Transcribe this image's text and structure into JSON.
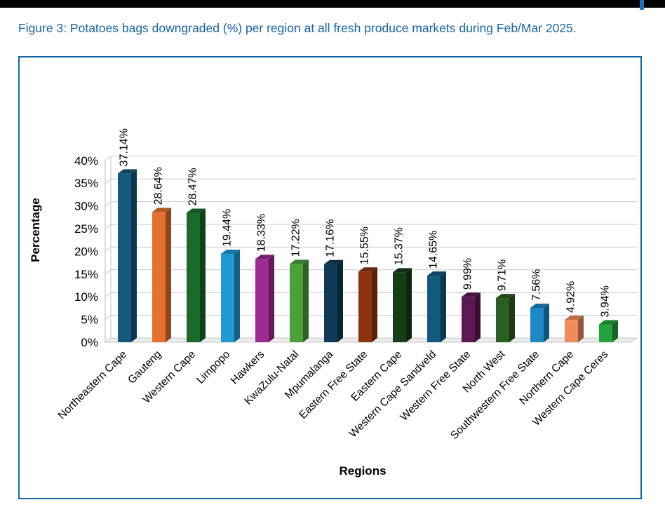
{
  "figure_title": "Figure 3: Potatoes bags downgraded (%) per region at all fresh produce markets during Feb/Mar 2025.",
  "colors": {
    "title": "#1565a8",
    "frame": "#1565a8",
    "grid": "#c8c8c8"
  },
  "chart_data": {
    "type": "bar",
    "title": "",
    "xlabel": "Regions",
    "ylabel": "Percentage",
    "ylim": [
      0,
      40
    ],
    "yticks": [
      "0%",
      "5%",
      "10%",
      "15%",
      "20%",
      "25%",
      "30%",
      "35%",
      "40%"
    ],
    "grid": true,
    "legend": "none",
    "categories": [
      "Northeastern Cape",
      "Gauteng",
      "Western Cape",
      "Limpopo",
      "Hawkers",
      "KwaZulu-Natal",
      "Mpumalanga",
      "Eastern Free State",
      "Eastern Cape",
      "Western Cape Sandveld",
      "Western Free State",
      "North West",
      "Southwestern Free State",
      "Northern Cape",
      "Western Cape Ceres"
    ],
    "values": [
      37.14,
      28.64,
      28.47,
      19.44,
      18.33,
      17.22,
      17.16,
      15.55,
      15.37,
      14.65,
      9.99,
      9.71,
      7.56,
      4.92,
      3.94
    ],
    "data_labels": [
      "37.14%",
      "28.64%",
      "28.47%",
      "19.44%",
      "18.33%",
      "17.22%",
      "17.16%",
      "15.55%",
      "15.37%",
      "14.65%",
      "9.99%",
      "9.71%",
      "7.56%",
      "4.92%",
      "3.94%"
    ],
    "bar_colors": [
      "#15597e",
      "#e67030",
      "#1a6b2a",
      "#1f9ad6",
      "#9e2a92",
      "#4ca03a",
      "#0f3a55",
      "#8c3410",
      "#143d18",
      "#115a7e",
      "#5c1852",
      "#2b5e22",
      "#1d88c4",
      "#ee8c5c",
      "#23a33c"
    ]
  }
}
